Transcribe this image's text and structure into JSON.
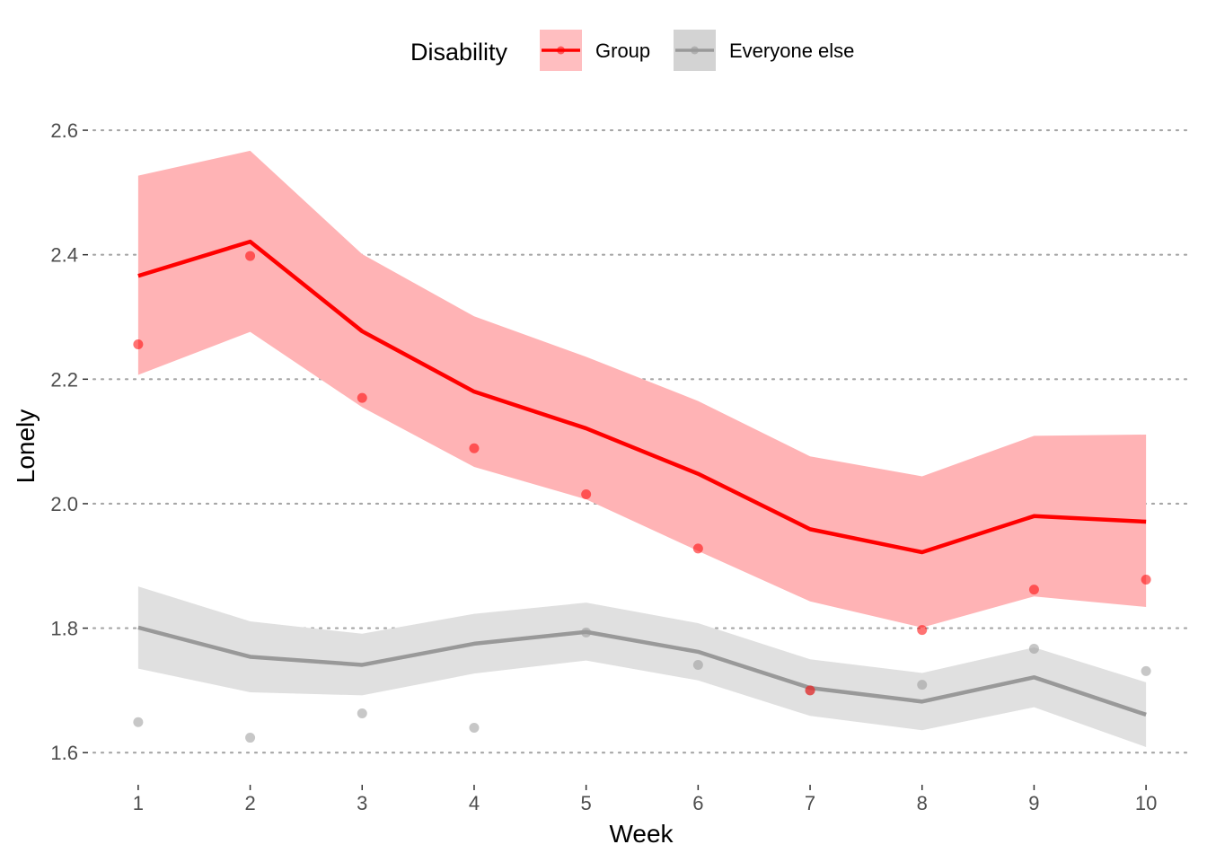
{
  "chart_data": {
    "type": "line",
    "xlabel": "Week",
    "ylabel": "Lonely",
    "x": [
      1,
      2,
      3,
      4,
      5,
      6,
      7,
      8,
      9,
      10
    ],
    "xlim": [
      0.6,
      10.4
    ],
    "ylim": [
      1.557,
      2.665
    ],
    "yticks": [
      1.6,
      1.8,
      2.0,
      2.2,
      2.4,
      2.6
    ],
    "ytick_labels": [
      "1.6",
      "1.8",
      "2.0",
      "2.2",
      "2.4",
      "2.6"
    ],
    "xtick_labels": [
      "1",
      "2",
      "3",
      "4",
      "5",
      "6",
      "7",
      "8",
      "9",
      "10"
    ],
    "grid": "horizontal-dotted",
    "legend": {
      "title": "Disability",
      "position": "top",
      "entries": [
        "Group",
        "Everyone else"
      ]
    },
    "series": [
      {
        "name": "Group",
        "color": "#ff0000",
        "fill_color": "#ffb3b5",
        "fit": [
          2.366,
          2.421,
          2.277,
          2.18,
          2.121,
          2.048,
          1.959,
          1.922,
          1.98,
          1.971
        ],
        "ci_lower": [
          2.207,
          2.276,
          2.155,
          2.059,
          2.007,
          1.924,
          1.843,
          1.801,
          1.851,
          1.834
        ],
        "ci_upper": [
          2.527,
          2.567,
          2.401,
          2.301,
          2.236,
          2.165,
          2.076,
          2.044,
          2.109,
          2.111
        ],
        "points": [
          2.256,
          2.398,
          2.17,
          2.089,
          2.015,
          1.928,
          1.7,
          1.797,
          1.862,
          1.878
        ]
      },
      {
        "name": "Everyone else",
        "color": "#999999",
        "fill_color": "#e0e0e0",
        "fit": [
          1.801,
          1.754,
          1.741,
          1.775,
          1.794,
          1.762,
          1.704,
          1.682,
          1.721,
          1.661
        ],
        "ci_lower": [
          1.735,
          1.697,
          1.692,
          1.727,
          1.748,
          1.716,
          1.659,
          1.636,
          1.673,
          1.609
        ],
        "ci_upper": [
          1.867,
          1.811,
          1.791,
          1.823,
          1.841,
          1.808,
          1.75,
          1.728,
          1.769,
          1.713
        ],
        "points": [
          1.649,
          1.624,
          1.663,
          1.64,
          1.793,
          1.741,
          1.7,
          1.709,
          1.767,
          1.731
        ]
      }
    ]
  }
}
